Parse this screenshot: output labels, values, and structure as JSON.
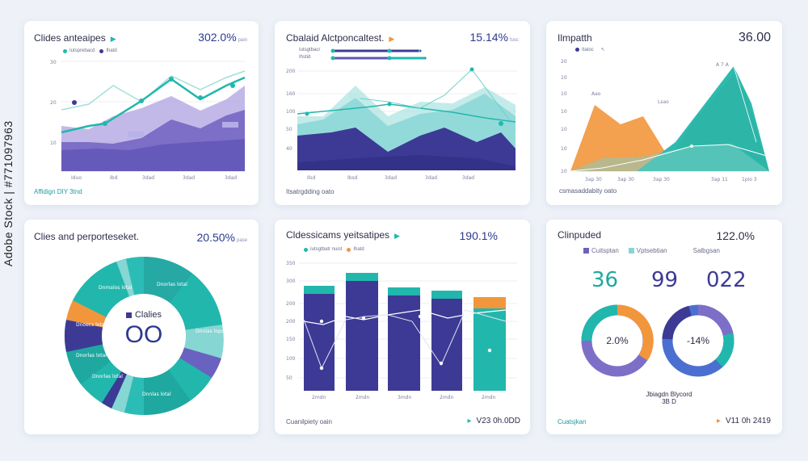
{
  "watermark": "Adobe Stock | #771097963",
  "card1": {
    "title": "Clides anteaipes",
    "value": "302.0%",
    "value_small": "pain",
    "legend": [
      "Iutsprebacd",
      "Ihatd"
    ],
    "yticks": [
      "30",
      "20",
      "10"
    ],
    "xticks": [
      "Iduo",
      "Ibd",
      "3dad",
      "3dad",
      "3dad"
    ],
    "footer": "Affidign DIY 3tnd"
  },
  "card2": {
    "title": "Cbalaid Alctponcaltest.",
    "value": "15.14%",
    "value_small": "fusc",
    "legend": [
      "Iutsgtbacr",
      "Ihstid"
    ],
    "yticks": [
      "200",
      "160",
      "100",
      "50",
      "40"
    ],
    "xticks": [
      "Ilsd",
      "Ibsd",
      "3dad",
      "3dad",
      "3dad"
    ],
    "footer": "Itsatrgdding oato"
  },
  "card3": {
    "title": "Ilmpatth",
    "value": "36.00",
    "legend": "Itatoc",
    "yticks": [
      "20",
      "10",
      "10",
      "10",
      "10",
      "10",
      "10"
    ],
    "annotations": [
      "A 7 A",
      "Aao",
      "Lsao"
    ],
    "xticks": [
      "3ap 30",
      "3ap 30",
      "3ap 30",
      "3ap 11",
      "1pio 3"
    ],
    "footer": "csmasaddabity oato"
  },
  "card4": {
    "title": "Clies and perporteseket.",
    "value": "20.50%",
    "value_small": "pase",
    "center_label": "Clalies",
    "center_value": "OO",
    "segment_labels": [
      "Dnorlas lotal",
      "Dnnlas lopd",
      "Dnmalos lotal",
      "Dnoecs lotal",
      "Dnorlas lotal",
      "Dnorlas lotal",
      "Dnnlas lotal"
    ]
  },
  "card5": {
    "title": "Cldessicams yeitsatipes",
    "value": "190.1%",
    "legend": [
      "Iutsgtbatr nuist",
      "Ihatd"
    ],
    "yticks": [
      "350",
      "300",
      "200",
      "200",
      "150",
      "100",
      "50"
    ],
    "xticks": [
      "2mdn",
      "2mdn",
      "3mdn",
      "2mdn",
      "2mdn"
    ],
    "footer": "Cuanilpiety oain",
    "footer_right": "V23 0h.0DD"
  },
  "card6": {
    "title": "Clinpuded",
    "value": "122.0%",
    "legend": [
      "Cuitsptan",
      "Vptsebtian",
      "Salbgsan"
    ],
    "stats": [
      "36",
      "99",
      "022"
    ],
    "donut1_label": "2.0%",
    "donut2_label": "-14%",
    "note_line1": "Jbiagdn Blycord",
    "note_line2": "3B D",
    "footer": "Cuatsjkan",
    "footer_right": "V11 0h 2419"
  },
  "colors": {
    "purple": "#7d6fc7",
    "indigo": "#3d3a95",
    "teal": "#22b7ac",
    "lightteal": "#86d6d4",
    "orange": "#f2963c",
    "navy": "#2b3a8f"
  }
}
